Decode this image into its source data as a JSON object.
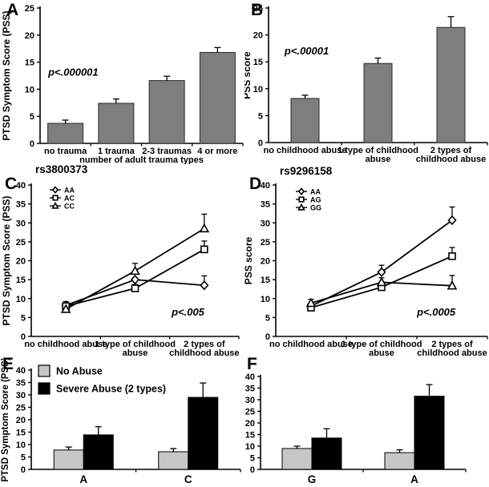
{
  "chart_data": [
    {
      "panel_label": "A",
      "type": "bar",
      "title": "",
      "ylabel": "PTSD Symptom Score (PSS)",
      "xlabel": "number of adult trauma types",
      "ylim": [
        0,
        25
      ],
      "ytick_step": 5,
      "grid": false,
      "annotation": {
        "text": "p<.000001",
        "fx": 0.04,
        "fy": 0.5
      },
      "categories": [
        "no trauma",
        "1 trauma",
        "2-3 traumas",
        "4 or more"
      ],
      "values": [
        3.7,
        7.4,
        11.6,
        16.8
      ],
      "errors": [
        0.6,
        0.8,
        0.8,
        0.9
      ],
      "bar_color": "#7e7e7e"
    },
    {
      "panel_label": "B",
      "type": "bar",
      "title": "",
      "ylabel": "PSS score",
      "xlabel": "",
      "ylim": [
        0,
        25
      ],
      "ytick_step": 5,
      "grid": false,
      "annotation": {
        "text": "p<.00001",
        "fx": 0.073,
        "fy": 0.345
      },
      "categories": [
        "no childhood abuse",
        "1 type of childhood\nabuse",
        "2 types of\nchildhood abuse"
      ],
      "values": [
        8.2,
        14.7,
        21.4
      ],
      "errors": [
        0.6,
        1.0,
        2.0
      ],
      "bar_color": "#7e7e7e"
    },
    {
      "panel_label": "C",
      "type": "line",
      "title": "rs3800373",
      "ylabel": "PTSD Symptom Score (PSS)",
      "xlabel": "",
      "ylim": [
        0,
        40
      ],
      "ytick_step": 5,
      "grid": false,
      "legend_pos": "top-left",
      "annotation": {
        "text": "p<.005",
        "fx": 0.676,
        "fy": 0.862
      },
      "categories": [
        "no childhood abuse",
        "1 type of childhood\nabuse",
        "2 types of\nchildhood abuse"
      ],
      "series": [
        {
          "name": "AA",
          "marker": "diamond",
          "values": [
            8.2,
            15.0,
            13.5
          ],
          "errors": [
            1.0,
            1.5,
            2.5
          ]
        },
        {
          "name": "AC",
          "marker": "square",
          "values": [
            8.0,
            12.7,
            23.0
          ],
          "errors": [
            0.8,
            1.0,
            2.2
          ]
        },
        {
          "name": "CC",
          "marker": "triangle",
          "values": [
            7.2,
            17.3,
            28.5
          ],
          "errors": [
            1.2,
            2.0,
            3.8
          ]
        }
      ]
    },
    {
      "panel_label": "D",
      "type": "line",
      "title": "rs9296158",
      "ylabel": "PSS score",
      "xlabel": "",
      "ylim": [
        0,
        40
      ],
      "ytick_step": 5,
      "grid": false,
      "legend_pos": "top-left",
      "annotation": {
        "text": "p<.0005",
        "fx": 0.667,
        "fy": 0.862
      },
      "categories": [
        "no childhood abuse",
        "1 type of childhood\nabuse",
        "2 types of\nchildhood abuse"
      ],
      "series": [
        {
          "name": "AA",
          "marker": "diamond",
          "values": [
            8.0,
            17.0,
            30.7
          ],
          "errors": [
            0.8,
            1.8,
            3.5
          ]
        },
        {
          "name": "AG",
          "marker": "square",
          "values": [
            7.6,
            13.0,
            21.2
          ],
          "errors": [
            0.8,
            1.0,
            2.3
          ]
        },
        {
          "name": "GG",
          "marker": "triangle",
          "values": [
            8.8,
            14.3,
            13.4
          ],
          "errors": [
            1.0,
            1.2,
            2.7
          ]
        }
      ]
    },
    {
      "panel_label": "E",
      "type": "grouped_bar",
      "title": "",
      "ylabel": "PTSD Symptom Score (PSS)",
      "xlabel": "",
      "ylim": [
        0,
        40
      ],
      "ytick_step": 5,
      "grid": false,
      "show_legend": true,
      "legend_pos": "top-left",
      "categories": [
        "A",
        "C"
      ],
      "series": [
        {
          "name": "No Abuse",
          "color": "#c6c6c6",
          "values": [
            7.8,
            7.1
          ],
          "errors": [
            1.2,
            1.3
          ]
        },
        {
          "name": "Severe Abuse (2 types)",
          "color": "#000000",
          "values": [
            13.9,
            29.0
          ],
          "errors": [
            3.3,
            5.8
          ]
        }
      ]
    },
    {
      "panel_label": "F",
      "type": "grouped_bar",
      "title": "",
      "ylabel": "",
      "xlabel": "",
      "ylim": [
        0,
        40
      ],
      "ytick_step": 5,
      "grid": false,
      "show_legend": false,
      "legend_pos": "none",
      "categories": [
        "G",
        "A"
      ],
      "series": [
        {
          "name": "No Abuse",
          "color": "#c6c6c6",
          "values": [
            9.0,
            7.2
          ],
          "errors": [
            1.0,
            1.2
          ]
        },
        {
          "name": "Severe Abuse (2 types)",
          "color": "#000000",
          "values": [
            13.5,
            31.5
          ],
          "errors": [
            4.0,
            5.0
          ]
        }
      ]
    }
  ],
  "colors": {
    "bar_gray": "#7e7e7e",
    "light_gray": "#c6c6c6",
    "black": "#000000",
    "background": "#ffffff"
  }
}
